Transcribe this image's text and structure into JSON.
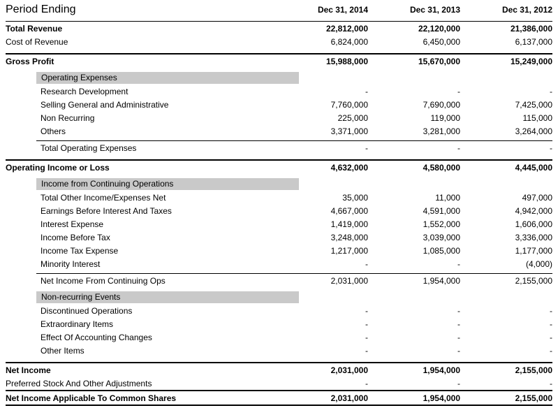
{
  "colors": {
    "background": "#ffffff",
    "text": "#000000",
    "section_bar_bg": "#c9c9c9",
    "rule": "#000000"
  },
  "header": {
    "title": "Period Ending",
    "columns": [
      "Dec 31, 2014",
      "Dec 31, 2013",
      "Dec 31, 2012"
    ]
  },
  "sections": {
    "operating_expenses": "Operating Expenses",
    "continuing_operations": "Income from Continuing Operations",
    "non_recurring_events": "Non-recurring Events"
  },
  "rows": {
    "total_revenue": {
      "label": "Total Revenue",
      "values": [
        "22,812,000",
        "22,120,000",
        "21,386,000"
      ]
    },
    "cost_of_revenue": {
      "label": "Cost of Revenue",
      "values": [
        "6,824,000",
        "6,450,000",
        "6,137,000"
      ]
    },
    "gross_profit": {
      "label": "Gross Profit",
      "values": [
        "15,988,000",
        "15,670,000",
        "15,249,000"
      ]
    },
    "research_development": {
      "label": "Research Development",
      "values": [
        "-",
        "-",
        "-"
      ]
    },
    "selling_general_admin": {
      "label": "Selling General and Administrative",
      "values": [
        "7,760,000",
        "7,690,000",
        "7,425,000"
      ]
    },
    "non_recurring": {
      "label": "Non Recurring",
      "values": [
        "225,000",
        "119,000",
        "115,000"
      ]
    },
    "others": {
      "label": "Others",
      "values": [
        "3,371,000",
        "3,281,000",
        "3,264,000"
      ]
    },
    "total_operating_expenses": {
      "label": "Total Operating Expenses",
      "values": [
        "-",
        "-",
        "-"
      ]
    },
    "operating_income": {
      "label": "Operating Income or Loss",
      "values": [
        "4,632,000",
        "4,580,000",
        "4,445,000"
      ]
    },
    "total_other_income": {
      "label": "Total Other Income/Expenses Net",
      "values": [
        "35,000",
        "11,000",
        "497,000"
      ]
    },
    "ebit": {
      "label": "Earnings Before Interest And Taxes",
      "values": [
        "4,667,000",
        "4,591,000",
        "4,942,000"
      ]
    },
    "interest_expense": {
      "label": "Interest Expense",
      "values": [
        "1,419,000",
        "1,552,000",
        "1,606,000"
      ]
    },
    "income_before_tax": {
      "label": "Income Before Tax",
      "values": [
        "3,248,000",
        "3,039,000",
        "3,336,000"
      ]
    },
    "income_tax_expense": {
      "label": "Income Tax Expense",
      "values": [
        "1,217,000",
        "1,085,000",
        "1,177,000"
      ]
    },
    "minority_interest": {
      "label": "Minority Interest",
      "values": [
        "-",
        "-",
        "(4,000)"
      ]
    },
    "net_income_continuing_ops": {
      "label": "Net Income From Continuing Ops",
      "values": [
        "2,031,000",
        "1,954,000",
        "2,155,000"
      ]
    },
    "discontinued_operations": {
      "label": "Discontinued Operations",
      "values": [
        "-",
        "-",
        "-"
      ]
    },
    "extraordinary_items": {
      "label": "Extraordinary Items",
      "values": [
        "-",
        "-",
        "-"
      ]
    },
    "accounting_changes": {
      "label": "Effect Of Accounting Changes",
      "values": [
        "-",
        "-",
        "-"
      ]
    },
    "other_items": {
      "label": "Other Items",
      "values": [
        "-",
        "-",
        "-"
      ]
    },
    "net_income": {
      "label": "Net Income",
      "values": [
        "2,031,000",
        "1,954,000",
        "2,155,000"
      ]
    },
    "preferred_stock": {
      "label": "Preferred Stock And Other Adjustments",
      "values": [
        "-",
        "-",
        "-"
      ]
    },
    "net_income_common": {
      "label": "Net Income Applicable To Common Shares",
      "values": [
        "2,031,000",
        "1,954,000",
        "2,155,000"
      ]
    }
  }
}
